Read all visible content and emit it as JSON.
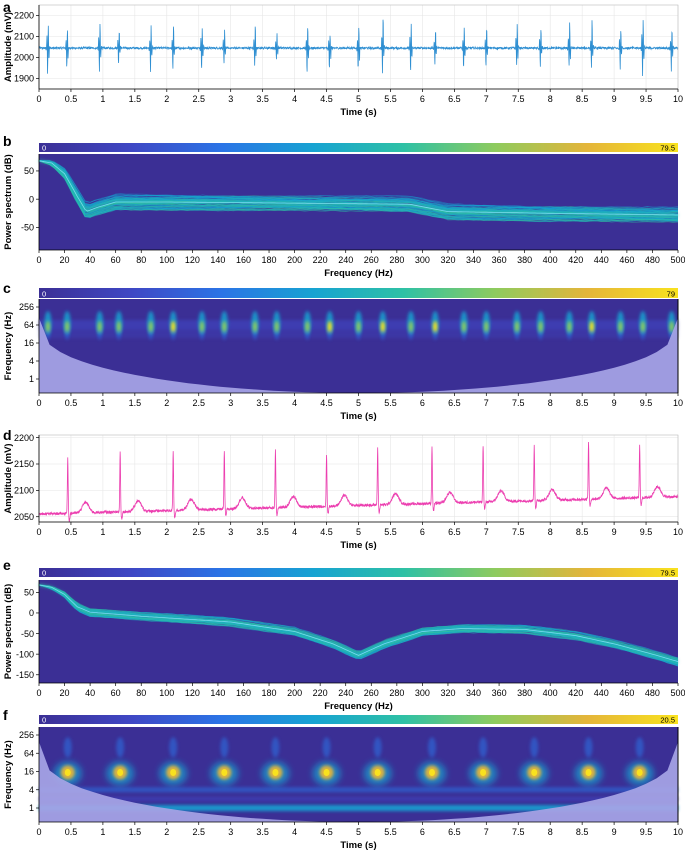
{
  "colors": {
    "heatmap_scale": [
      "#3b2f95",
      "#3f47c4",
      "#2b74e6",
      "#17a3d2",
      "#2ec1a5",
      "#8ecb5e",
      "#e4b53a",
      "#f9e21e"
    ],
    "eeg_trace": "#2f8fd2",
    "ecg_trace": "#ec3fb0",
    "curve_light": "#8fe3ff",
    "cone": "#a7a5e6",
    "axis": "#000000",
    "grid": "#e6e6e6"
  },
  "chart_data": [
    {
      "panel": "a",
      "type": "line",
      "xlabel": "Time (s)",
      "ylabel": "Amplitude (mV)",
      "xlim": [
        0,
        10
      ],
      "ylim": [
        1850,
        2250
      ],
      "x_ticks": [
        "0",
        "0.5",
        "1",
        "1.5",
        "2",
        "2.5",
        "3",
        "3.5",
        "4",
        "4.5",
        "5",
        "5.5",
        "6",
        "6.5",
        "7",
        "7.5",
        "8",
        "8.5",
        "9",
        "9.5",
        "10"
      ],
      "y_ticks": [
        "1900",
        "2000",
        "2100",
        "2200"
      ],
      "baseline": 2045,
      "burst_times": [
        0.14,
        0.44,
        0.95,
        1.25,
        1.75,
        2.1,
        2.55,
        2.9,
        3.38,
        3.72,
        4.2,
        4.55,
        5.0,
        5.38,
        5.82,
        6.2,
        6.65,
        7.0,
        7.48,
        7.85,
        8.3,
        8.65,
        9.1,
        9.45,
        9.9
      ],
      "burst_peaks": [
        2200,
        2170,
        2190,
        2180,
        2175,
        2185,
        2190,
        2150,
        2185,
        2150,
        2190,
        2160,
        2190,
        2250,
        2190,
        2170,
        2190,
        2190,
        2200,
        2170,
        2190,
        2200,
        2190,
        2230,
        2180
      ],
      "burst_troughs": [
        1885,
        1920,
        1910,
        1950,
        1910,
        1930,
        1900,
        1950,
        1900,
        1960,
        1895,
        1900,
        1880,
        1900,
        1900,
        1920,
        1895,
        1920,
        1930,
        1940,
        1895,
        1925,
        1900,
        1875,
        1910
      ],
      "grid": true
    },
    {
      "panel": "b",
      "type": "heatmap",
      "xlabel": "Frequency (Hz)",
      "ylabel": "Power spectrum (dB)",
      "xlim": [
        0,
        500
      ],
      "ylim": [
        -90,
        80
      ],
      "x_ticks": [
        "0",
        "20",
        "40",
        "60",
        "80",
        "100",
        "120",
        "140",
        "160",
        "180",
        "200",
        "220",
        "240",
        "260",
        "280",
        "300",
        "320",
        "340",
        "360",
        "380",
        "400",
        "420",
        "440",
        "460",
        "480",
        "500"
      ],
      "y_ticks": [
        "50",
        "0",
        "-50"
      ],
      "colorbar": {
        "min": 0,
        "max": 79.5,
        "min_label": "0",
        "max_label": "79.5"
      },
      "spectrum_curve": {
        "freq": [
          0,
          10,
          20,
          30,
          37,
          45,
          60,
          100,
          200,
          290,
          320,
          400,
          500
        ],
        "db": [
          68,
          64,
          45,
          5,
          -22,
          -15,
          -5,
          -5,
          -7,
          -9,
          -22,
          -25,
          -28
        ]
      },
      "spread_db": 12
    },
    {
      "panel": "c",
      "type": "heatmap",
      "xlabel": "Time (s)",
      "ylabel": "Frequency (Hz)",
      "xlim": [
        0,
        10
      ],
      "x_ticks": [
        "0",
        "0.5",
        "1",
        "1.5",
        "2",
        "2.5",
        "3",
        "3.5",
        "4",
        "4.5",
        "5",
        "5.5",
        "6",
        "6.5",
        "7",
        "7.5",
        "8",
        "8.5",
        "9",
        "9.5",
        "10"
      ],
      "y_ticks": [
        "256",
        "64",
        "16",
        "4",
        "1"
      ],
      "colorbar": {
        "min": 0,
        "max": 79,
        "min_label": "0",
        "max_label": "79"
      },
      "event_times": [
        0.14,
        0.44,
        0.95,
        1.25,
        1.75,
        2.1,
        2.55,
        2.9,
        3.38,
        3.72,
        4.2,
        4.55,
        5.0,
        5.38,
        5.82,
        6.2,
        6.65,
        7.0,
        7.48,
        7.85,
        8.3,
        8.65,
        9.1,
        9.45,
        9.9
      ],
      "event_intensity": [
        0.55,
        0.7,
        0.5,
        0.6,
        0.55,
        0.8,
        0.55,
        0.5,
        0.6,
        0.55,
        0.6,
        0.8,
        0.55,
        0.85,
        0.55,
        0.9,
        0.5,
        0.6,
        0.55,
        0.6,
        0.55,
        0.8,
        0.55,
        0.65,
        0.55
      ]
    },
    {
      "panel": "d",
      "type": "line",
      "xlabel": "Time (s)",
      "ylabel": "Amplitude (mV)",
      "xlim": [
        0,
        10
      ],
      "ylim": [
        2040,
        2205
      ],
      "x_ticks": [
        "0",
        "0.5",
        "1",
        "1.5",
        "2",
        "2.5",
        "3",
        "3.5",
        "4",
        "4.5",
        "5",
        "5.5",
        "6",
        "6.5",
        "7",
        "7.5",
        "8",
        "8.5",
        "9",
        "9.5",
        "10"
      ],
      "y_ticks": [
        "2050",
        "2100",
        "2150",
        "2200"
      ],
      "baseline_start": 2055,
      "baseline_end": 2088,
      "r_peak_times": [
        0.45,
        1.27,
        2.1,
        2.9,
        3.7,
        4.5,
        5.3,
        6.15,
        6.95,
        7.75,
        8.6,
        9.4
      ],
      "r_peak_values": [
        2162,
        2176,
        2176,
        2175,
        2177,
        2168,
        2180,
        2185,
        2186,
        2184,
        2193,
        2185
      ],
      "t_wave_height": 20,
      "grid": true
    },
    {
      "panel": "e",
      "type": "heatmap",
      "xlabel": "Frequency (Hz)",
      "ylabel": "Power spectrum (dB)",
      "xlim": [
        0,
        500
      ],
      "ylim": [
        -170,
        80
      ],
      "x_ticks": [
        "0",
        "20",
        "40",
        "60",
        "80",
        "100",
        "120",
        "140",
        "160",
        "180",
        "200",
        "220",
        "240",
        "260",
        "280",
        "300",
        "320",
        "340",
        "360",
        "380",
        "400",
        "420",
        "440",
        "460",
        "480",
        "500"
      ],
      "y_ticks": [
        "50",
        "0",
        "-50",
        "-100",
        "-150"
      ],
      "colorbar": {
        "min": 0,
        "max": 79.5,
        "min_label": "0",
        "max_label": "79.5"
      },
      "spectrum_curve": {
        "freq": [
          0,
          10,
          20,
          30,
          40,
          80,
          150,
          200,
          230,
          250,
          270,
          300,
          330,
          380,
          420,
          450,
          480,
          500
        ],
        "db": [
          68,
          62,
          45,
          15,
          2,
          -8,
          -22,
          -45,
          -75,
          -103,
          -75,
          -45,
          -38,
          -40,
          -55,
          -75,
          -100,
          -118
        ]
      },
      "spread_db": 8
    },
    {
      "panel": "f",
      "type": "heatmap",
      "xlabel": "Time (s)",
      "ylabel": "Frequency (Hz)",
      "xlim": [
        0,
        10
      ],
      "x_ticks": [
        "0",
        "0.5",
        "1",
        "1.5",
        "2",
        "2.5",
        "3",
        "3.5",
        "4",
        "4.5",
        "5",
        "5.5",
        "6",
        "6.5",
        "7",
        "7.5",
        "8",
        "8.5",
        "9",
        "9.5",
        "10"
      ],
      "y_ticks": [
        "256",
        "64",
        "16",
        "4",
        "1"
      ],
      "colorbar": {
        "min": 0,
        "max": 20.5,
        "min_label": "0",
        "max_label": "20.5"
      },
      "event_times": [
        0.45,
        1.27,
        2.1,
        2.9,
        3.7,
        4.5,
        5.3,
        6.15,
        6.95,
        7.75,
        8.6,
        9.4
      ]
    }
  ]
}
